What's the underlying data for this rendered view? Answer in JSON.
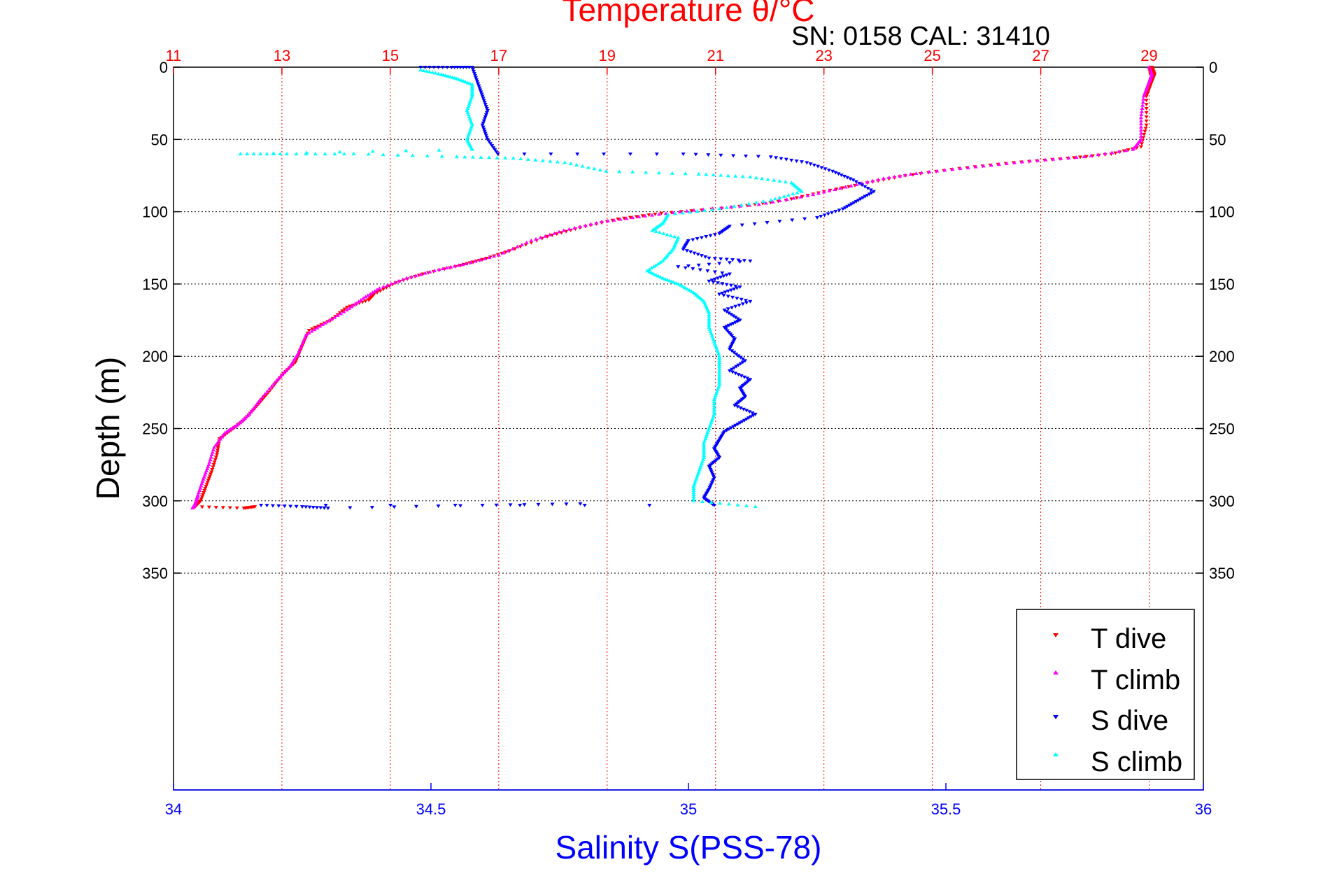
{
  "chart_data": {
    "type": "scatter",
    "title": "Temperature θ/°C",
    "subtitle": "SN: 0158  CAL: 31410",
    "xlabel_bottom": "Salinity S(PSS-78)",
    "ylabel": "Depth (m)",
    "x_top": {
      "min": 11,
      "max": 30,
      "ticks": [
        11,
        13,
        15,
        17,
        19,
        21,
        23,
        25,
        27,
        29
      ],
      "tick_labels": [
        "11",
        "13",
        "15",
        "17",
        "19",
        "21",
        "23",
        "25",
        "27",
        "29"
      ]
    },
    "x_bottom": {
      "min": 34,
      "max": 36,
      "ticks": [
        34,
        34.5,
        35,
        35.5,
        36
      ],
      "tick_labels": [
        "34",
        "34.5",
        "35",
        "35.5",
        "36"
      ]
    },
    "y": {
      "min": 0,
      "max": 500,
      "reversed": true,
      "ticks": [
        0,
        50,
        100,
        150,
        200,
        250,
        300,
        350
      ],
      "tick_labels": [
        "0",
        "50",
        "100",
        "150",
        "200",
        "250",
        "300",
        "350"
      ]
    },
    "grid": true,
    "legend_position": "bottom-right",
    "colors": {
      "title": "#ff0000",
      "subtitle": "#000000",
      "axis_top": "#ff0000",
      "axis_bottom": "#0000ff",
      "grid_temperature": "#ff0000",
      "grid_depth": "#000000"
    },
    "series": [
      {
        "name": "T dive",
        "axis": "top",
        "color": "#ff0000",
        "marker": "triangle-down",
        "points": [
          [
            29.05,
            0
          ],
          [
            29.1,
            5
          ],
          [
            29.05,
            10
          ],
          [
            28.95,
            20
          ],
          [
            28.95,
            40
          ],
          [
            28.85,
            55
          ],
          [
            28.3,
            60
          ],
          [
            27.5,
            63
          ],
          [
            26.5,
            66
          ],
          [
            25.5,
            70
          ],
          [
            24.5,
            75
          ],
          [
            23.8,
            80
          ],
          [
            23.0,
            86
          ],
          [
            22.3,
            92
          ],
          [
            21.3,
            97
          ],
          [
            20.0,
            101
          ],
          [
            19.2,
            105
          ],
          [
            18.5,
            111
          ],
          [
            17.9,
            117
          ],
          [
            17.2,
            127
          ],
          [
            16.7,
            133
          ],
          [
            16.3,
            137
          ],
          [
            15.6,
            143
          ],
          [
            15.1,
            149
          ],
          [
            14.7,
            157
          ],
          [
            14.6,
            161
          ],
          [
            14.2,
            166
          ],
          [
            13.9,
            175
          ],
          [
            13.5,
            182
          ],
          [
            13.35,
            195
          ],
          [
            13.25,
            204
          ],
          [
            13.0,
            213
          ],
          [
            12.75,
            225
          ],
          [
            12.5,
            236
          ],
          [
            12.3,
            244
          ],
          [
            12.1,
            250
          ],
          [
            11.85,
            257
          ],
          [
            11.8,
            268
          ],
          [
            11.7,
            280
          ],
          [
            11.6,
            290
          ],
          [
            11.5,
            300
          ],
          [
            11.4,
            304
          ],
          [
            12.3,
            305
          ],
          [
            12.5,
            304
          ]
        ]
      },
      {
        "name": "T climb",
        "axis": "top",
        "color": "#ff00ff",
        "marker": "triangle-up",
        "points": [
          [
            29.0,
            0
          ],
          [
            29.05,
            5
          ],
          [
            29.0,
            10
          ],
          [
            28.9,
            20
          ],
          [
            28.85,
            35
          ],
          [
            28.85,
            50
          ],
          [
            28.7,
            57
          ],
          [
            27.8,
            62
          ],
          [
            26.8,
            65
          ],
          [
            25.8,
            69
          ],
          [
            24.8,
            73
          ],
          [
            24.1,
            77
          ],
          [
            23.4,
            83
          ],
          [
            22.7,
            89
          ],
          [
            21.8,
            95
          ],
          [
            20.6,
            99
          ],
          [
            19.7,
            103
          ],
          [
            18.9,
            107
          ],
          [
            18.2,
            113
          ],
          [
            17.6,
            120
          ],
          [
            17.0,
            130
          ],
          [
            16.4,
            136
          ],
          [
            15.9,
            140
          ],
          [
            15.3,
            146
          ],
          [
            14.8,
            153
          ],
          [
            14.5,
            160
          ],
          [
            14.2,
            168
          ],
          [
            13.8,
            177
          ],
          [
            13.45,
            185
          ],
          [
            13.3,
            198
          ],
          [
            13.15,
            207
          ],
          [
            12.9,
            217
          ],
          [
            12.6,
            230
          ],
          [
            12.4,
            240
          ],
          [
            12.2,
            247
          ],
          [
            11.95,
            253
          ],
          [
            11.75,
            263
          ],
          [
            11.65,
            275
          ],
          [
            11.55,
            285
          ],
          [
            11.45,
            296
          ],
          [
            11.4,
            302
          ],
          [
            11.35,
            305
          ]
        ]
      },
      {
        "name": "S dive",
        "axis": "bottom",
        "color": "#0000ff",
        "marker": "triangle-down",
        "points": [
          [
            34.48,
            0
          ],
          [
            34.54,
            0
          ],
          [
            34.58,
            0
          ],
          [
            34.59,
            10
          ],
          [
            34.6,
            20
          ],
          [
            34.61,
            30
          ],
          [
            34.6,
            40
          ],
          [
            34.61,
            50
          ],
          [
            34.63,
            60
          ],
          [
            34.99,
            60
          ],
          [
            35.16,
            62
          ],
          [
            35.23,
            66
          ],
          [
            35.28,
            72
          ],
          [
            35.32,
            78
          ],
          [
            35.36,
            86
          ],
          [
            35.33,
            92
          ],
          [
            35.3,
            98
          ],
          [
            35.25,
            104
          ],
          [
            35.08,
            110
          ],
          [
            35.06,
            115
          ],
          [
            35.0,
            120
          ],
          [
            34.99,
            126
          ],
          [
            35.04,
            132
          ],
          [
            35.12,
            134
          ],
          [
            34.98,
            138
          ],
          [
            35.08,
            143
          ],
          [
            35.04,
            148
          ],
          [
            35.1,
            152
          ],
          [
            35.06,
            157
          ],
          [
            35.12,
            162
          ],
          [
            35.07,
            168
          ],
          [
            35.1,
            175
          ],
          [
            35.07,
            180
          ],
          [
            35.09,
            188
          ],
          [
            35.08,
            195
          ],
          [
            35.11,
            203
          ],
          [
            35.08,
            210
          ],
          [
            35.12,
            216
          ],
          [
            35.1,
            222
          ],
          [
            35.11,
            228
          ],
          [
            35.09,
            234
          ],
          [
            35.13,
            240
          ],
          [
            35.1,
            246
          ],
          [
            35.07,
            252
          ],
          [
            35.06,
            258
          ],
          [
            35.05,
            264
          ],
          [
            35.06,
            270
          ],
          [
            35.04,
            276
          ],
          [
            35.05,
            284
          ],
          [
            35.04,
            292
          ],
          [
            35.03,
            298
          ],
          [
            35.05,
            303
          ],
          [
            34.17,
            303
          ],
          [
            34.25,
            304
          ],
          [
            34.3,
            305
          ],
          [
            34.6,
            303
          ],
          [
            34.79,
            302
          ]
        ]
      },
      {
        "name": "S climb",
        "axis": "bottom",
        "color": "#00ffff",
        "marker": "triangle-up",
        "points": [
          [
            34.48,
            2
          ],
          [
            34.52,
            5
          ],
          [
            34.55,
            8
          ],
          [
            34.58,
            12
          ],
          [
            34.58,
            20
          ],
          [
            34.57,
            30
          ],
          [
            34.58,
            40
          ],
          [
            34.57,
            50
          ],
          [
            34.58,
            57
          ],
          [
            34.13,
            60
          ],
          [
            34.22,
            60
          ],
          [
            34.35,
            60
          ],
          [
            34.55,
            62
          ],
          [
            34.66,
            63
          ],
          [
            34.76,
            66
          ],
          [
            34.84,
            72
          ],
          [
            35.02,
            74
          ],
          [
            35.12,
            76
          ],
          [
            35.2,
            80
          ],
          [
            35.22,
            86
          ],
          [
            35.16,
            92
          ],
          [
            35.06,
            98
          ],
          [
            34.96,
            102
          ],
          [
            34.95,
            108
          ],
          [
            34.93,
            113
          ],
          [
            34.98,
            118
          ],
          [
            34.97,
            126
          ],
          [
            34.95,
            134
          ],
          [
            34.92,
            141
          ],
          [
            34.95,
            146
          ],
          [
            34.98,
            150
          ],
          [
            35.01,
            156
          ],
          [
            35.03,
            162
          ],
          [
            35.04,
            170
          ],
          [
            35.04,
            180
          ],
          [
            35.05,
            190
          ],
          [
            35.06,
            200
          ],
          [
            35.06,
            210
          ],
          [
            35.06,
            220
          ],
          [
            35.05,
            230
          ],
          [
            35.05,
            240
          ],
          [
            35.04,
            250
          ],
          [
            35.03,
            260
          ],
          [
            35.03,
            270
          ],
          [
            35.02,
            280
          ],
          [
            35.01,
            290
          ],
          [
            35.01,
            300
          ],
          [
            35.13,
            304
          ]
        ]
      }
    ]
  }
}
